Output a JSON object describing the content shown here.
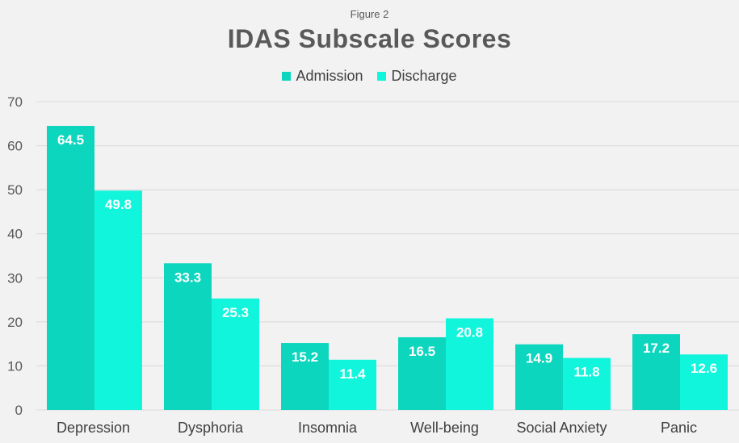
{
  "figure_label": "Figure 2",
  "colors": {
    "admission": "#0dd6be",
    "discharge": "#10f5dc",
    "grid": "#d9d9d9",
    "axis_text": "#595959",
    "label_text": "#ffffff"
  },
  "chart_data": {
    "type": "bar",
    "title": "IDAS Subscale Scores",
    "xlabel": "",
    "ylabel": "",
    "categories": [
      "Depression",
      "Dysphoria",
      "Insomnia",
      "Well-being",
      "Social Anxiety",
      "Panic"
    ],
    "series": [
      {
        "name": "Admission",
        "values": [
          64.5,
          33.3,
          15.2,
          16.5,
          14.9,
          17.2
        ]
      },
      {
        "name": "Discharge",
        "values": [
          49.8,
          25.3,
          11.4,
          20.8,
          11.8,
          12.6
        ]
      }
    ],
    "ylim": [
      0,
      70
    ],
    "yticks": [
      0,
      10,
      20,
      30,
      40,
      50,
      60,
      70
    ],
    "grid": true,
    "legend_position": "top-center",
    "data_labels": true
  }
}
